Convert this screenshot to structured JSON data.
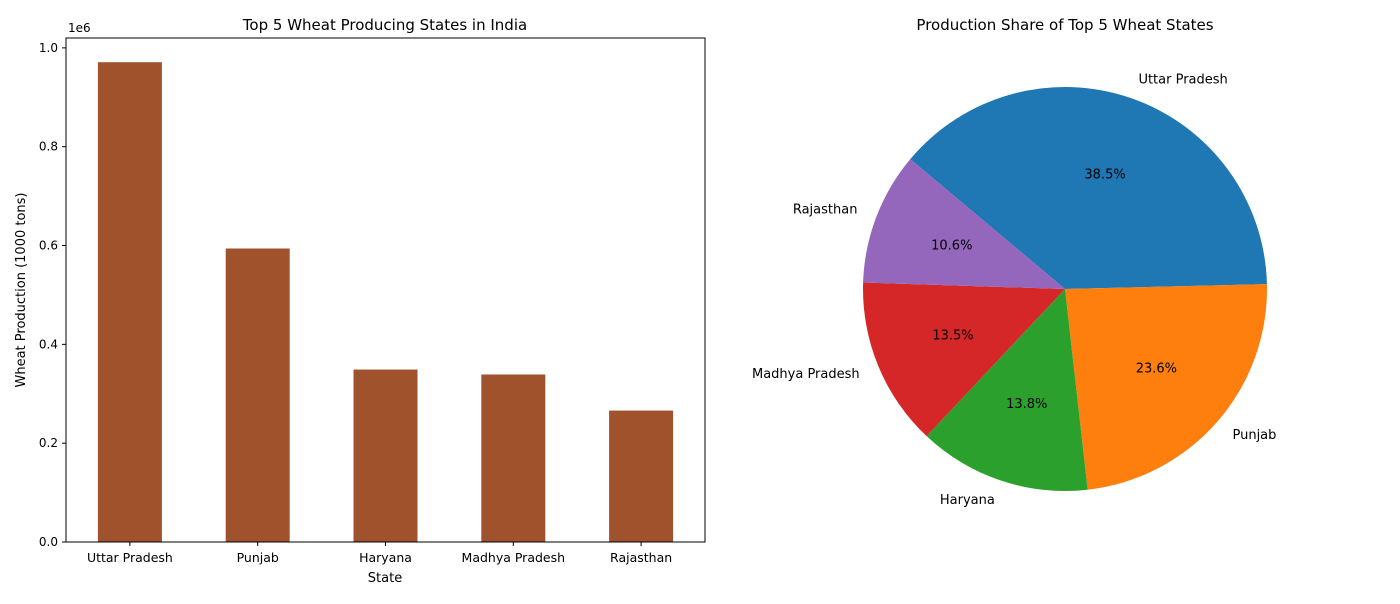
{
  "chart_data": [
    {
      "type": "bar",
      "title": "Top 5 Wheat Producing States in India",
      "xlabel": "State",
      "ylabel": "Wheat Production (1000 tons)",
      "offset_label": "1e6",
      "categories": [
        "Uttar Pradesh",
        "Punjab",
        "Haryana",
        "Madhya Pradesh",
        "Rajasthan"
      ],
      "values": [
        971000,
        594000,
        349000,
        339000,
        266000
      ],
      "ylim": [
        0,
        1.02
      ],
      "yticks": [
        0.0,
        0.2,
        0.4,
        0.6,
        0.8,
        1.0
      ],
      "ytick_labels": [
        "0.0",
        "0.2",
        "0.4",
        "0.6",
        "0.8",
        "1.0"
      ],
      "bar_color": "#a0522d",
      "grid": false
    },
    {
      "type": "pie",
      "title": "Production Share of Top 5 Wheat States",
      "labels": [
        "Uttar Pradesh",
        "Punjab",
        "Haryana",
        "Madhya Pradesh",
        "Rajasthan"
      ],
      "percent_labels": [
        "38.5%",
        "23.6%",
        "13.8%",
        "13.5%",
        "10.6%"
      ],
      "values": [
        38.5,
        23.6,
        13.8,
        13.5,
        10.6
      ],
      "colors": [
        "#1f77b4",
        "#ff7f0e",
        "#2ca02c",
        "#d62728",
        "#9467bd"
      ],
      "start_angle_deg": 140
    }
  ]
}
